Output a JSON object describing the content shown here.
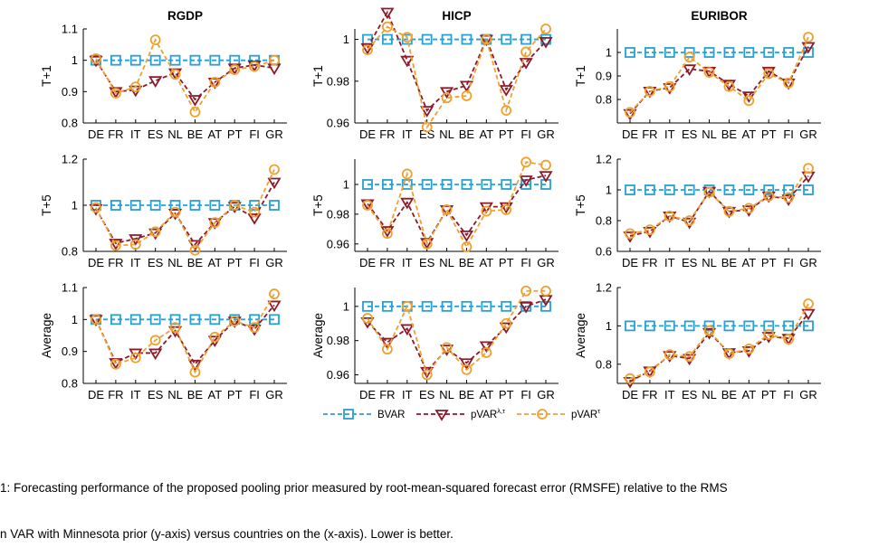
{
  "caption": {
    "line1": "1: Forecasting performance of the proposed pooling prior measured by root-mean-squared forecast error (RMSFE) relative to the RMS",
    "line2": "n VAR with Minnesota prior (y-axis) versus countries on the (x-axis). Lower is better."
  },
  "legend": [
    {
      "label": "BVAR",
      "color": "#2a9fd0",
      "marker": "square"
    },
    {
      "label": "pVAR",
      "sup": "λ,τ",
      "color": "#8b1a2b",
      "marker": "triangle"
    },
    {
      "label": "pVAR",
      "sup": "τ",
      "color": "#f0a030",
      "marker": "circle"
    }
  ],
  "chart_data": [
    {
      "type": "line",
      "title": "RGDP",
      "ylabel": "T+1",
      "ylim": [
        0.8,
        1.1
      ],
      "yticks": [
        "0.8",
        "0.9",
        "1",
        "1.1"
      ],
      "categories": [
        "DE",
        "FR",
        "IT",
        "ES",
        "NL",
        "BE",
        "AT",
        "PT",
        "FI",
        "GR"
      ],
      "series": [
        {
          "name": "BVAR",
          "values": [
            1,
            1,
            1,
            1,
            1,
            1,
            1,
            1,
            1,
            1
          ]
        },
        {
          "name": "pVAR λ,τ",
          "values": [
            1.0,
            0.9,
            0.905,
            0.935,
            0.96,
            0.875,
            0.93,
            0.975,
            0.985,
            0.975
          ]
        },
        {
          "name": "pVAR τ",
          "values": [
            1.005,
            0.895,
            0.915,
            1.065,
            0.955,
            0.835,
            0.93,
            0.97,
            0.98,
            1.0
          ]
        }
      ]
    },
    {
      "type": "line",
      "title": "HICP",
      "ylabel": "T+1",
      "ylim": [
        0.96,
        1.005
      ],
      "yticks": [
        "0.96",
        "0.98",
        "1"
      ],
      "categories": [
        "DE",
        "FR",
        "IT",
        "ES",
        "NL",
        "BE",
        "AT",
        "PT",
        "FI",
        "GR"
      ],
      "series": [
        {
          "name": "BVAR",
          "values": [
            1,
            1,
            1,
            1,
            1,
            1,
            1,
            1,
            1,
            1
          ]
        },
        {
          "name": "pVAR λ,τ",
          "values": [
            0.996,
            1.013,
            0.99,
            0.966,
            0.975,
            0.978,
            1.0,
            0.976,
            0.989,
            0.999
          ]
        },
        {
          "name": "pVAR τ",
          "values": [
            0.995,
            1.006,
            1.001,
            0.958,
            0.972,
            0.973,
            1.0,
            0.966,
            0.994,
            1.005
          ]
        }
      ]
    },
    {
      "type": "line",
      "title": "EURIBOR",
      "ylabel": "T+1",
      "ylim": [
        0.7,
        1.1
      ],
      "yticks": [
        "0.8",
        "0.9",
        "1"
      ],
      "categories": [
        "DE",
        "FR",
        "IT",
        "ES",
        "NL",
        "BE",
        "AT",
        "PT",
        "FI",
        "GR"
      ],
      "series": [
        {
          "name": "BVAR",
          "values": [
            1,
            1,
            1,
            1,
            1,
            1,
            1,
            1,
            1,
            1
          ]
        },
        {
          "name": "pVAR λ,τ",
          "values": [
            0.74,
            0.835,
            0.85,
            0.93,
            0.92,
            0.865,
            0.815,
            0.92,
            0.87,
            1.025
          ]
        },
        {
          "name": "pVAR τ",
          "values": [
            0.745,
            0.835,
            0.855,
            0.98,
            0.915,
            0.855,
            0.795,
            0.91,
            0.87,
            1.065
          ]
        }
      ]
    },
    {
      "type": "line",
      "title": "",
      "ylabel": "T+5",
      "ylim": [
        0.8,
        1.2
      ],
      "yticks": [
        "0.8",
        "1",
        "1.2"
      ],
      "categories": [
        "DE",
        "FR",
        "IT",
        "ES",
        "NL",
        "BE",
        "AT",
        "PT",
        "FI",
        "GR"
      ],
      "series": [
        {
          "name": "BVAR",
          "values": [
            1,
            1,
            1,
            1,
            1,
            1,
            1,
            1,
            1,
            1
          ]
        },
        {
          "name": "pVAR λ,τ",
          "values": [
            0.985,
            0.835,
            0.855,
            0.88,
            0.965,
            0.83,
            0.925,
            0.995,
            0.945,
            1.1
          ]
        },
        {
          "name": "pVAR τ",
          "values": [
            0.99,
            0.825,
            0.83,
            0.885,
            0.97,
            0.805,
            0.925,
            1.0,
            0.97,
            1.155
          ]
        }
      ]
    },
    {
      "type": "line",
      "title": "",
      "ylabel": "T+5",
      "ylim": [
        0.955,
        1.017
      ],
      "yticks": [
        "0.96",
        "0.98",
        "1"
      ],
      "categories": [
        "DE",
        "FR",
        "IT",
        "ES",
        "NL",
        "BE",
        "AT",
        "PT",
        "FI",
        "GR"
      ],
      "series": [
        {
          "name": "BVAR",
          "values": [
            1,
            1,
            1,
            1,
            1,
            1,
            1,
            1,
            1,
            1
          ]
        },
        {
          "name": "pVAR λ,τ",
          "values": [
            0.987,
            0.969,
            0.988,
            0.961,
            0.983,
            0.966,
            0.985,
            0.985,
            1.003,
            1.006
          ]
        },
        {
          "name": "pVAR τ",
          "values": [
            0.986,
            0.967,
            1.007,
            0.96,
            0.983,
            0.958,
            0.982,
            0.983,
            1.015,
            1.013
          ]
        }
      ]
    },
    {
      "type": "line",
      "title": "",
      "ylabel": "T+5",
      "ylim": [
        0.6,
        1.2
      ],
      "yticks": [
        "0.6",
        "0.8",
        "1",
        "1.2"
      ],
      "categories": [
        "DE",
        "FR",
        "IT",
        "ES",
        "NL",
        "BE",
        "AT",
        "PT",
        "FI",
        "GR"
      ],
      "series": [
        {
          "name": "BVAR",
          "values": [
            1,
            1,
            1,
            1,
            1,
            1,
            1,
            1,
            1,
            1
          ]
        },
        {
          "name": "pVAR λ,τ",
          "values": [
            0.7,
            0.73,
            0.83,
            0.79,
            0.99,
            0.86,
            0.87,
            0.96,
            0.94,
            1.09
          ]
        },
        {
          "name": "pVAR τ",
          "values": [
            0.715,
            0.74,
            0.83,
            0.8,
            0.985,
            0.86,
            0.88,
            0.96,
            0.95,
            1.14
          ]
        }
      ]
    },
    {
      "type": "line",
      "title": "",
      "ylabel": "Average",
      "ylim": [
        0.8,
        1.1
      ],
      "yticks": [
        "0.8",
        "0.9",
        "1",
        "1.1"
      ],
      "categories": [
        "DE",
        "FR",
        "IT",
        "ES",
        "NL",
        "BE",
        "AT",
        "PT",
        "FI",
        "GR"
      ],
      "series": [
        {
          "name": "BVAR",
          "values": [
            1,
            1,
            1,
            1,
            1,
            1,
            1,
            1,
            1,
            1
          ]
        },
        {
          "name": "pVAR λ,τ",
          "values": [
            1.0,
            0.865,
            0.895,
            0.895,
            0.965,
            0.86,
            0.935,
            0.995,
            0.97,
            1.045
          ]
        },
        {
          "name": "pVAR τ",
          "values": [
            1.0,
            0.86,
            0.88,
            0.935,
            0.975,
            0.835,
            0.945,
            0.995,
            0.975,
            1.08
          ]
        }
      ]
    },
    {
      "type": "line",
      "title": "",
      "ylabel": "Average",
      "ylim": [
        0.955,
        1.011
      ],
      "yticks": [
        "0.96",
        "0.98",
        "1"
      ],
      "categories": [
        "DE",
        "FR",
        "IT",
        "ES",
        "NL",
        "BE",
        "AT",
        "PT",
        "FI",
        "GR"
      ],
      "series": [
        {
          "name": "BVAR",
          "values": [
            1,
            1,
            1,
            1,
            1,
            1,
            1,
            1,
            1,
            1
          ]
        },
        {
          "name": "pVAR λ,τ",
          "values": [
            0.991,
            0.979,
            0.987,
            0.962,
            0.975,
            0.967,
            0.977,
            0.988,
            1.0,
            1.004
          ]
        },
        {
          "name": "pVAR τ",
          "values": [
            0.993,
            0.975,
            1.0,
            0.96,
            0.976,
            0.963,
            0.973,
            0.99,
            1.009,
            1.009
          ]
        }
      ]
    },
    {
      "type": "line",
      "title": "",
      "ylabel": "Average",
      "ylim": [
        0.7,
        1.2
      ],
      "yticks": [
        "0.8",
        "1",
        "1.2"
      ],
      "categories": [
        "DE",
        "FR",
        "IT",
        "ES",
        "NL",
        "BE",
        "AT",
        "PT",
        "FI",
        "GR"
      ],
      "series": [
        {
          "name": "BVAR",
          "values": [
            1,
            1,
            1,
            1,
            1,
            1,
            1,
            1,
            1,
            1
          ]
        },
        {
          "name": "pVAR λ,τ",
          "values": [
            0.71,
            0.765,
            0.845,
            0.83,
            0.965,
            0.86,
            0.87,
            0.945,
            0.935,
            1.065
          ]
        },
        {
          "name": "pVAR τ",
          "values": [
            0.725,
            0.76,
            0.85,
            0.84,
            0.975,
            0.855,
            0.88,
            0.955,
            0.93,
            1.115
          ]
        }
      ]
    }
  ]
}
